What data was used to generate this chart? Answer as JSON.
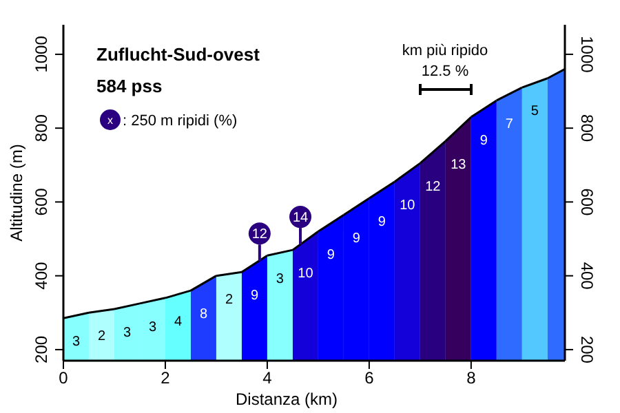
{
  "chart_data": {
    "type": "area",
    "title": "Zuflucht-Sud-ovest",
    "subtitle": "584 pss",
    "xlabel": "Distanza (km)",
    "ylabel": "Altitudine (m)",
    "xlim": [
      0,
      9.84
    ],
    "xticks": [
      0,
      2,
      4,
      6,
      8
    ],
    "ylim": [
      170,
      1080
    ],
    "yticks": [
      200,
      400,
      600,
      800,
      1000
    ],
    "y2lim": [
      170,
      1080
    ],
    "y2ticks": [
      200,
      400,
      600,
      800,
      1000
    ],
    "series": [
      {
        "name": "3",
        "color": "#88ffff",
        "x": [
          0,
          0.5
        ],
        "values": [
          285,
          300
        ]
      },
      {
        "name": "2",
        "color": "#b0ffff",
        "x": [
          0.5,
          1.0
        ],
        "values": [
          300,
          310
        ]
      },
      {
        "name": "3",
        "color": "#88ffff",
        "x": [
          1.0,
          1.5
        ],
        "values": [
          310,
          325
        ]
      },
      {
        "name": "3",
        "color": "#88ffff",
        "x": [
          1.5,
          2.0
        ],
        "values": [
          325,
          340
        ]
      },
      {
        "name": "4",
        "color": "#66ffff",
        "x": [
          2.0,
          2.5
        ],
        "values": [
          340,
          360
        ]
      },
      {
        "name": "8",
        "color": "#1e3cff",
        "x": [
          2.5,
          3.0
        ],
        "values": [
          360,
          400
        ]
      },
      {
        "name": "2",
        "color": "#b0ffff",
        "x": [
          3.0,
          3.5
        ],
        "values": [
          400,
          410
        ]
      },
      {
        "name": "9",
        "color": "#0000ff",
        "x": [
          3.5,
          4.0
        ],
        "values": [
          410,
          455
        ]
      },
      {
        "name": "3",
        "color": "#88ffff",
        "x": [
          4.0,
          4.5
        ],
        "values": [
          455,
          470
        ]
      },
      {
        "name": "10",
        "color": "#1400d8",
        "x": [
          4.5,
          5.0
        ],
        "values": [
          470,
          520
        ]
      },
      {
        "name": "9",
        "color": "#0000ff",
        "x": [
          5.0,
          5.5
        ],
        "values": [
          520,
          565
        ]
      },
      {
        "name": "9",
        "color": "#0000ff",
        "x": [
          5.5,
          6.0
        ],
        "values": [
          565,
          610
        ]
      },
      {
        "name": "9",
        "color": "#0000ff",
        "x": [
          6.0,
          6.5
        ],
        "values": [
          610,
          655
        ]
      },
      {
        "name": "10",
        "color": "#1400d8",
        "x": [
          6.5,
          7.0
        ],
        "values": [
          655,
          705
        ]
      },
      {
        "name": "12",
        "color": "#280080",
        "x": [
          7.0,
          7.5
        ],
        "values": [
          705,
          765
        ]
      },
      {
        "name": "13",
        "color": "#36005f",
        "x": [
          7.5,
          8.0
        ],
        "values": [
          765,
          830
        ]
      },
      {
        "name": "9",
        "color": "#0000ff",
        "x": [
          8.0,
          8.5
        ],
        "values": [
          830,
          875
        ]
      },
      {
        "name": "7",
        "color": "#2f6bff",
        "x": [
          8.5,
          9.0
        ],
        "values": [
          875,
          910
        ]
      },
      {
        "name": "5",
        "color": "#52c8ff",
        "x": [
          9.0,
          9.5
        ],
        "values": [
          910,
          935
        ]
      },
      {
        "color": "#2f6bff",
        "x": [
          9.5,
          9.84
        ],
        "values": [
          935,
          960
        ]
      }
    ],
    "annotations": [
      {
        "text": "12",
        "x": 3.85,
        "y": 440
      },
      {
        "text": "14",
        "x": 4.65,
        "y": 485
      },
      "x",
      ": 250 m ripidi (%)",
      "km più ripido",
      "12.5 %"
    ]
  }
}
